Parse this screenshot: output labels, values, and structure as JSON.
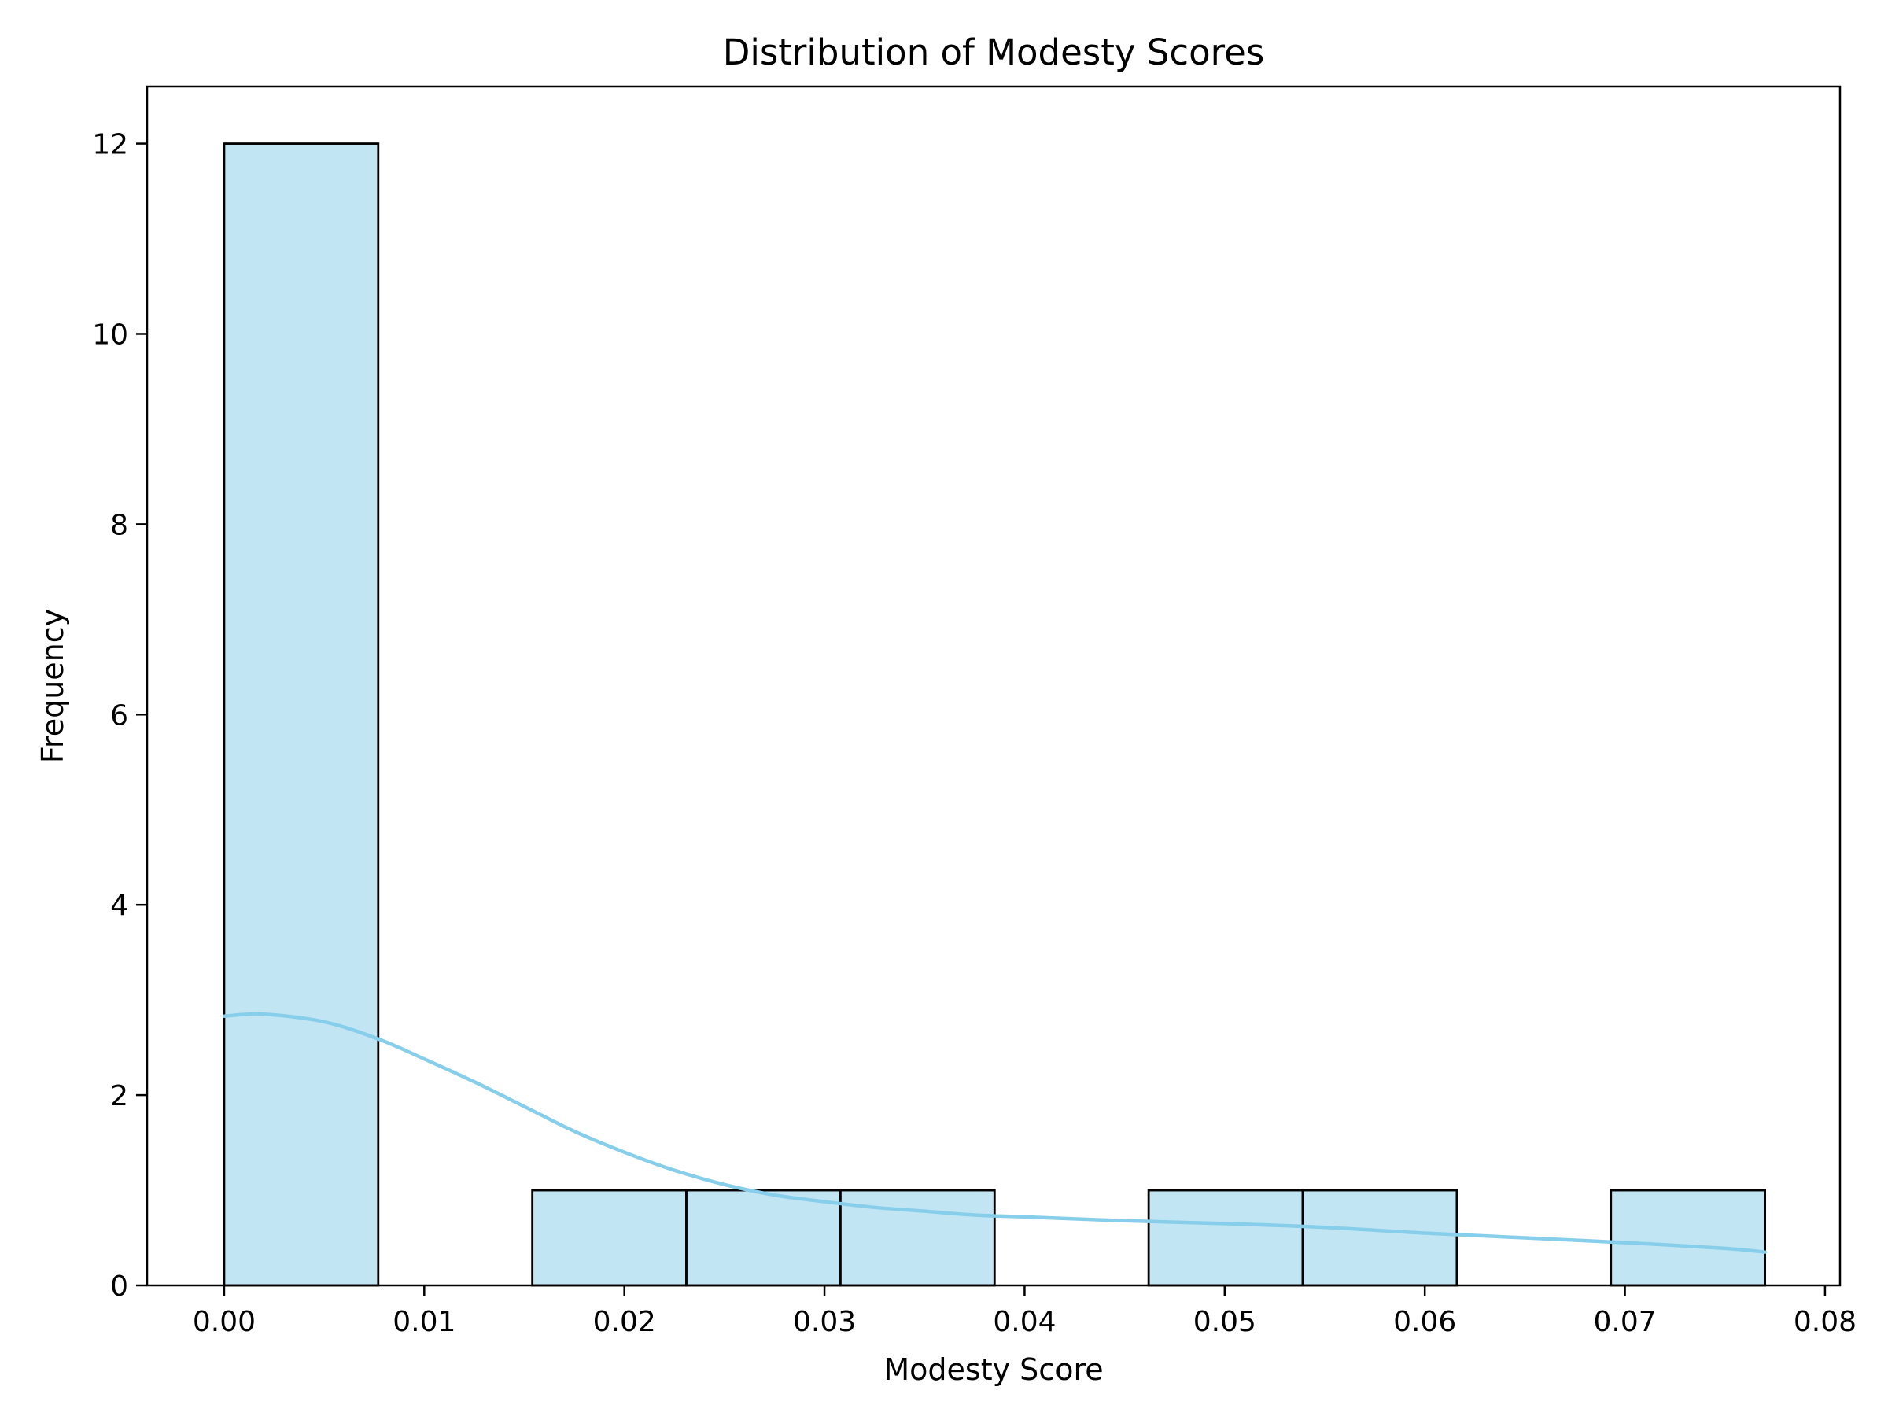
{
  "chart_data": {
    "type": "bar",
    "subtype": "histogram-with-kde",
    "title": "Distribution of Modesty Scores",
    "xlabel": "Modesty Score",
    "ylabel": "Frequency",
    "xlim": [
      -0.00385,
      0.08075
    ],
    "ylim": [
      0,
      12.6
    ],
    "x_ticks": [
      "0.00",
      "0.01",
      "0.02",
      "0.03",
      "0.04",
      "0.05",
      "0.06",
      "0.07",
      "0.08"
    ],
    "y_ticks": [
      "0",
      "2",
      "4",
      "6",
      "8",
      "10",
      "12"
    ],
    "bin_edges": [
      0.0,
      0.0077,
      0.0154,
      0.0231,
      0.0308,
      0.0385,
      0.0462,
      0.0539,
      0.0616,
      0.0693,
      0.077
    ],
    "counts": [
      12,
      0,
      1,
      1,
      1,
      0,
      1,
      1,
      0,
      1
    ],
    "kde": {
      "x": [
        0.0,
        0.002,
        0.005,
        0.0077,
        0.01,
        0.0125,
        0.015,
        0.0175,
        0.02,
        0.0225,
        0.025,
        0.0275,
        0.03,
        0.0325,
        0.035,
        0.0375,
        0.04,
        0.045,
        0.05,
        0.055,
        0.06,
        0.065,
        0.07,
        0.075,
        0.077
      ],
      "y": [
        2.83,
        2.85,
        2.77,
        2.59,
        2.38,
        2.14,
        1.88,
        1.62,
        1.4,
        1.21,
        1.06,
        0.95,
        0.88,
        0.82,
        0.78,
        0.74,
        0.72,
        0.68,
        0.65,
        0.61,
        0.55,
        0.5,
        0.45,
        0.39,
        0.35
      ]
    },
    "grid": false,
    "legend": "none",
    "colors": {
      "bar_fill": "#c2e5f4",
      "bar_edge": "#000000",
      "kde_line": "#87ceeb",
      "axis": "#000000"
    }
  }
}
